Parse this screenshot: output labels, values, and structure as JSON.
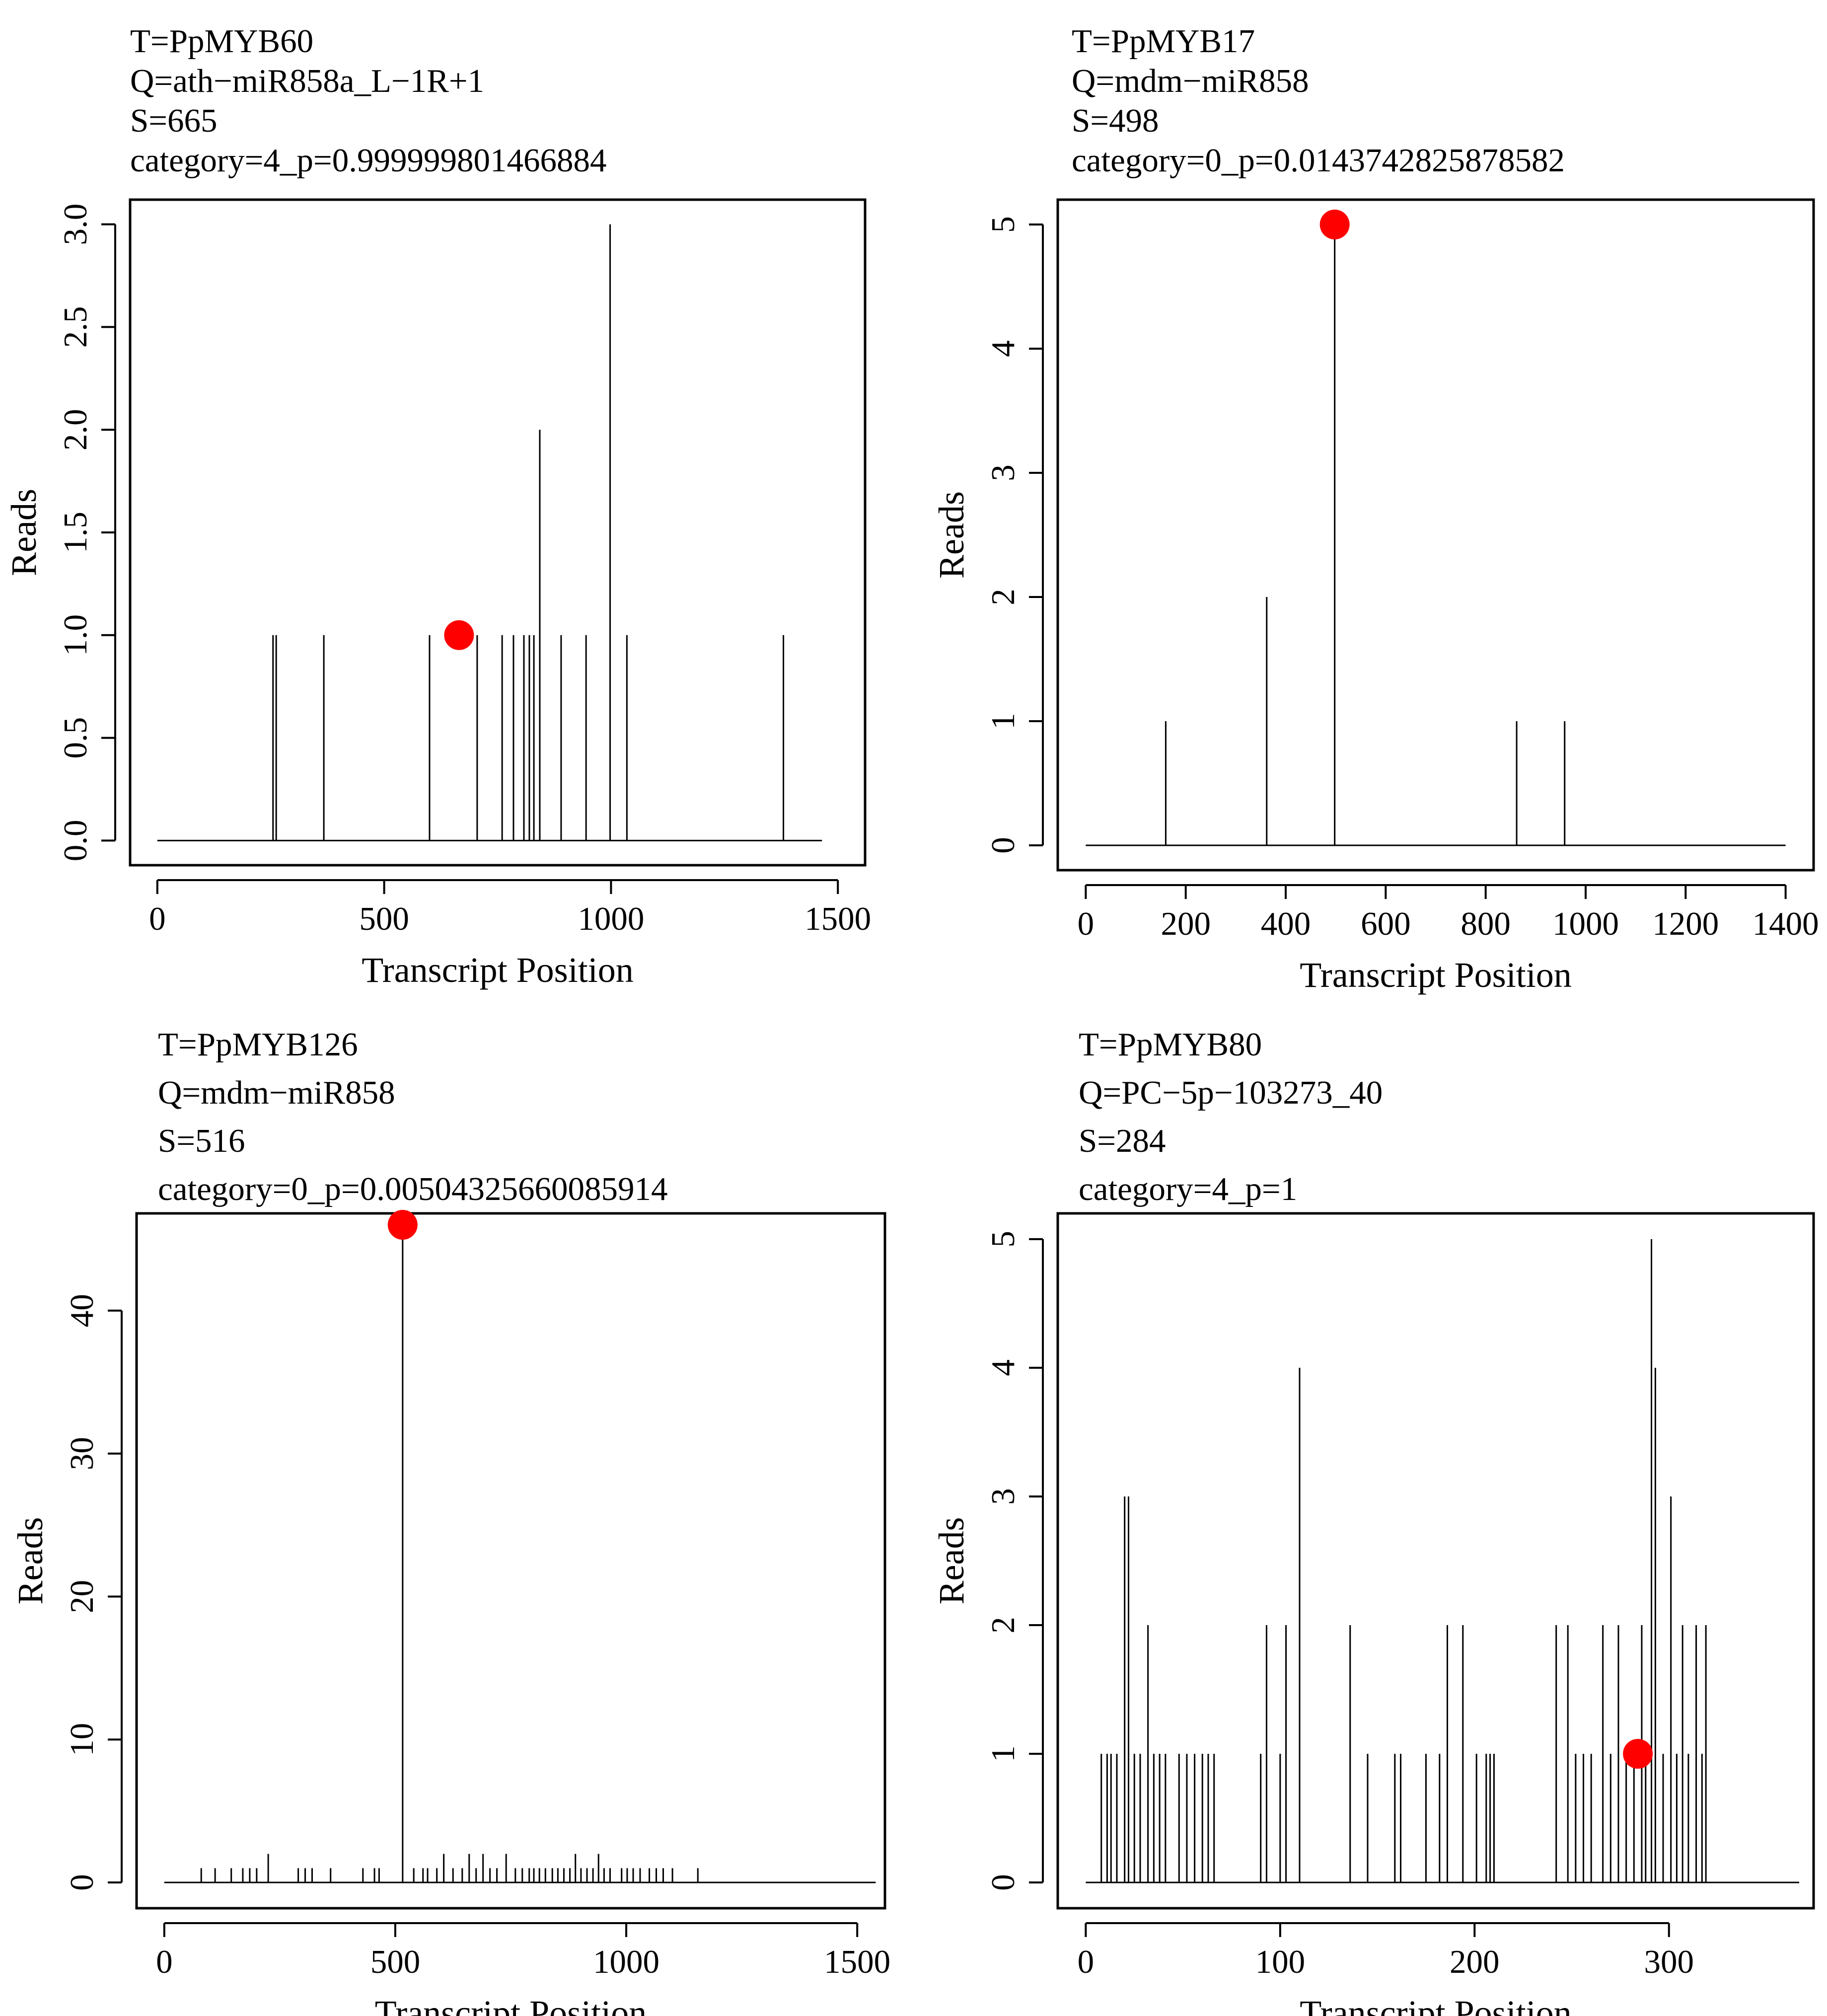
{
  "chart_data": [
    {
      "type": "line",
      "title_lines": [
        "T=PpMYB60",
        "Q=ath−miR858a_L−1R+1",
        "S=665",
        "category=4_p=0.999999801466884"
      ],
      "xlabel": "Transcript Position",
      "ylabel": "Reads",
      "xlim": [
        0,
        1500
      ],
      "ylim": [
        0,
        3
      ],
      "x_ticks": [
        0,
        500,
        1000,
        1500
      ],
      "x_tick_labels": [
        "0",
        "500",
        "1000",
        "1500"
      ],
      "y_ticks": [
        0,
        0.5,
        1,
        1.5,
        2,
        2.5,
        3
      ],
      "y_tick_labels": [
        "0.0",
        "0.5",
        "1.0",
        "1.5",
        "2.0",
        "2.5",
        "3.0"
      ],
      "rotate_y_ticks": true,
      "transcript_length": 1465,
      "x": [
        255,
        262,
        367,
        600,
        705,
        760,
        785,
        808,
        820,
        830,
        843,
        890,
        945,
        998,
        1035,
        1380
      ],
      "y": [
        1,
        1,
        1,
        1,
        1,
        1,
        1,
        1,
        1,
        1,
        2,
        1,
        1,
        3,
        1,
        1
      ],
      "highlight": {
        "x": 665,
        "y": 1,
        "color": "#ff0000"
      }
    },
    {
      "type": "line",
      "title_lines": [
        "T=PpMYB17",
        "Q=mdm−miR858",
        "S=498",
        "category=0_p=0.0143742825878582"
      ],
      "xlabel": "Transcript Position",
      "ylabel": "Reads",
      "xlim": [
        0,
        1400
      ],
      "ylim": [
        0,
        5
      ],
      "x_ticks": [
        0,
        200,
        400,
        600,
        800,
        1000,
        1200,
        1400
      ],
      "x_tick_labels": [
        "0",
        "200",
        "400",
        "600",
        "800",
        "1000",
        "1200",
        "1400"
      ],
      "y_ticks": [
        0,
        1,
        2,
        3,
        4,
        5
      ],
      "y_tick_labels": [
        "0",
        "1",
        "2",
        "3",
        "4",
        "5"
      ],
      "rotate_y_ticks": true,
      "transcript_length": 1400,
      "x": [
        160,
        362,
        498,
        862,
        958
      ],
      "y": [
        1,
        2,
        5,
        1,
        1
      ],
      "highlight": {
        "x": 498,
        "y": 5,
        "color": "#ff0000"
      }
    },
    {
      "type": "line",
      "title_lines": [
        "T=PpMYB126",
        "Q=mdm−miR858",
        "S=516",
        "category=0_p=0.00504325660085914"
      ],
      "xlabel": "Transcript Position",
      "ylabel": "Reads",
      "xlim": [
        0,
        1500
      ],
      "ylim": [
        0,
        45
      ],
      "x_ticks": [
        0,
        500,
        1000,
        1500
      ],
      "x_tick_labels": [
        "0",
        "500",
        "1000",
        "1500"
      ],
      "y_ticks": [
        0,
        10,
        20,
        30,
        40
      ],
      "y_tick_labels": [
        "0",
        "10",
        "20",
        "30",
        "40"
      ],
      "rotate_y_ticks": true,
      "transcript_length": 1540,
      "x": [
        80,
        110,
        145,
        170,
        185,
        200,
        225,
        290,
        305,
        320,
        360,
        430,
        455,
        465,
        516,
        540,
        560,
        570,
        590,
        605,
        625,
        645,
        660,
        675,
        690,
        705,
        720,
        740,
        760,
        775,
        790,
        800,
        812,
        825,
        840,
        852,
        865,
        878,
        890,
        902,
        915,
        928,
        940,
        952,
        965,
        990,
        1002,
        1015,
        1030,
        1050,
        1065,
        1080,
        1100,
        1155
      ],
      "y": [
        1,
        1,
        1,
        1,
        1,
        1,
        2,
        1,
        1,
        1,
        1,
        1,
        1,
        1,
        46,
        1,
        1,
        1,
        1,
        2,
        1,
        1,
        2,
        1,
        2,
        1,
        1,
        2,
        1,
        1,
        1,
        1,
        1,
        1,
        1,
        1,
        1,
        1,
        2,
        1,
        1,
        1,
        2,
        1,
        1,
        1,
        1,
        1,
        1,
        1,
        1,
        1,
        1,
        1
      ],
      "highlight": {
        "x": 516,
        "y": 46,
        "color": "#ff0000"
      }
    },
    {
      "type": "line",
      "title_lines": [
        "T=PpMYB80",
        "Q=PC−5p−103273_40",
        "S=284",
        "category=4_p=1"
      ],
      "xlabel": "Transcript Position",
      "ylabel": "Reads",
      "xlim": [
        0,
        360
      ],
      "ylim": [
        0,
        5
      ],
      "x_ticks": [
        0,
        100,
        200,
        300
      ],
      "x_tick_labels": [
        "0",
        "100",
        "200",
        "300"
      ],
      "y_ticks": [
        0,
        1,
        2,
        3,
        4,
        5
      ],
      "y_tick_labels": [
        "0",
        "1",
        "2",
        "3",
        "4",
        "5"
      ],
      "rotate_y_ticks": true,
      "transcript_length": 367,
      "x": [
        8,
        11,
        13,
        16,
        20,
        22,
        25,
        28,
        32,
        35,
        38,
        41,
        48,
        52,
        56,
        60,
        63,
        66,
        90,
        93,
        100,
        103,
        110,
        136,
        145,
        159,
        162,
        175,
        182,
        186,
        194,
        201,
        206,
        208,
        210,
        242,
        248,
        252,
        256,
        260,
        266,
        270,
        274,
        278,
        282,
        286,
        288,
        291,
        293,
        297,
        301,
        304,
        307,
        310,
        314,
        317,
        319
      ],
      "y": [
        1,
        1,
        1,
        1,
        3,
        3,
        1,
        1,
        2,
        1,
        1,
        1,
        1,
        1,
        1,
        1,
        1,
        1,
        1,
        2,
        1,
        2,
        4,
        2,
        1,
        1,
        1,
        1,
        1,
        2,
        2,
        1,
        1,
        1,
        1,
        2,
        2,
        1,
        1,
        1,
        2,
        1,
        2,
        1,
        1,
        2,
        1,
        5,
        4,
        1,
        3,
        1,
        2,
        1,
        2,
        1,
        2
      ],
      "highlight": {
        "x": 284,
        "y": 1,
        "color": "#ff0000"
      }
    }
  ]
}
